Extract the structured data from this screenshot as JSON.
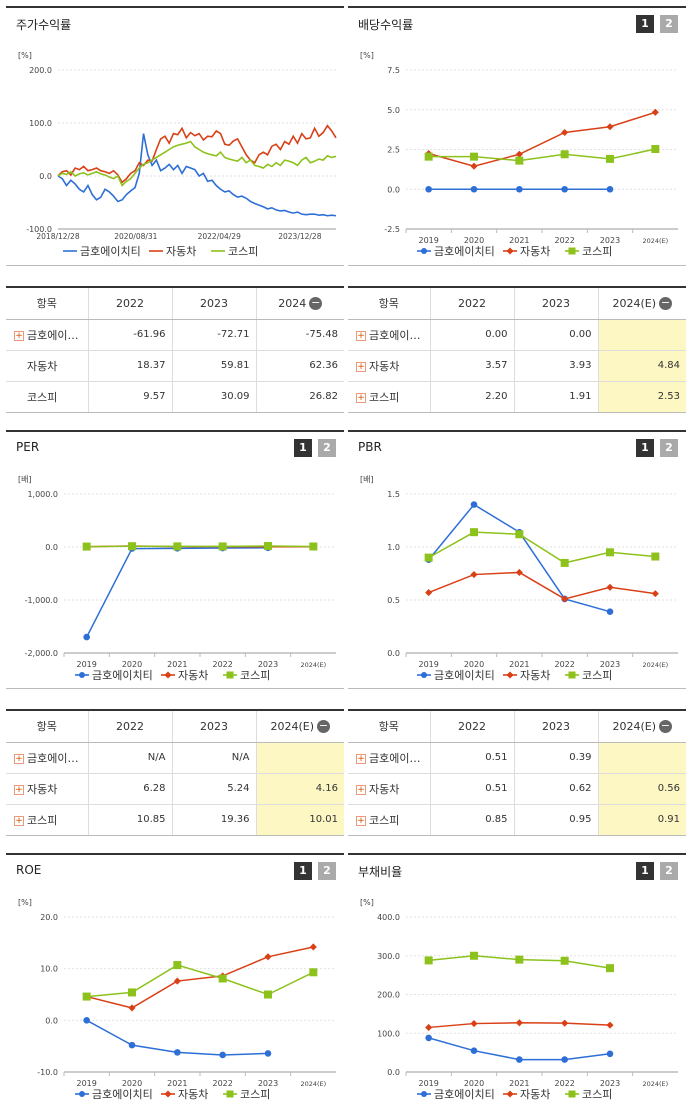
{
  "colors": {
    "blue": "#2d6fd6",
    "red": "#d94016",
    "green": "#8cc21b"
  },
  "legend": [
    "금호에이치티",
    "자동차",
    "코스피"
  ],
  "tab_labels": [
    "1",
    "2"
  ],
  "panels": {
    "returns": {
      "title": "주가수익률",
      "unit": "[%]"
    },
    "dividend": {
      "title": "배당수익률",
      "unit": "[%]"
    },
    "per": {
      "title": "PER",
      "unit": "[배]"
    },
    "pbr": {
      "title": "PBR",
      "unit": "[배]"
    },
    "roe": {
      "title": "ROE",
      "unit": "[%]"
    },
    "debt": {
      "title": "부채비율",
      "unit": "[%]"
    }
  },
  "tables": {
    "returns": {
      "header": [
        "항목",
        "2022",
        "2023",
        "2024"
      ],
      "rows": [
        [
          "금호에이…",
          "-61.96",
          "-72.71",
          "-75.48"
        ],
        [
          "자동차",
          "18.37",
          "59.81",
          "62.36"
        ],
        [
          "코스피",
          "9.57",
          "30.09",
          "26.82"
        ]
      ],
      "plus": [
        true,
        false,
        false
      ],
      "hl": false
    },
    "dividend": {
      "header": [
        "항목",
        "2022",
        "2023",
        "2024(E)"
      ],
      "rows": [
        [
          "금호에이…",
          "0.00",
          "0.00",
          ""
        ],
        [
          "자동차",
          "3.57",
          "3.93",
          "4.84"
        ],
        [
          "코스피",
          "2.20",
          "1.91",
          "2.53"
        ]
      ],
      "plus": [
        true,
        true,
        true
      ],
      "hl": true
    },
    "per": {
      "header": [
        "항목",
        "2022",
        "2023",
        "2024(E)"
      ],
      "rows": [
        [
          "금호에이…",
          "N/A",
          "N/A",
          ""
        ],
        [
          "자동차",
          "6.28",
          "5.24",
          "4.16"
        ],
        [
          "코스피",
          "10.85",
          "19.36",
          "10.01"
        ]
      ],
      "plus": [
        true,
        true,
        true
      ],
      "hl": true
    },
    "pbr": {
      "header": [
        "항목",
        "2022",
        "2023",
        "2024(E)"
      ],
      "rows": [
        [
          "금호에이…",
          "0.51",
          "0.39",
          ""
        ],
        [
          "자동차",
          "0.51",
          "0.62",
          "0.56"
        ],
        [
          "코스피",
          "0.85",
          "0.95",
          "0.91"
        ]
      ],
      "plus": [
        true,
        true,
        true
      ],
      "hl": true
    }
  },
  "chart_data": [
    {
      "id": "returns",
      "type": "line",
      "title": "주가수익률",
      "ylabel": "[%]",
      "ylim": [
        -100,
        200
      ],
      "yticks": [
        "200.0",
        "100.0",
        "0.0",
        "-100.0"
      ],
      "xticks": [
        "2018/12/28",
        "2020/08/31",
        "2022/04/29",
        "2023/12/28"
      ],
      "series": [
        {
          "name": "금호에이치티",
          "color": "blue",
          "values": [
            0,
            -5,
            -18,
            -8,
            -15,
            -25,
            -30,
            -18,
            -35,
            -45,
            -40,
            -25,
            -30,
            -38,
            -48,
            -45,
            -35,
            -28,
            -22,
            5,
            80,
            40,
            20,
            30,
            10,
            15,
            22,
            12,
            20,
            5,
            18,
            15,
            12,
            0,
            5,
            -10,
            -8,
            -18,
            -25,
            -30,
            -28,
            -35,
            -40,
            -38,
            -42,
            -48,
            -52,
            -55,
            -58,
            -62,
            -60,
            -64,
            -66,
            -65,
            -68,
            -70,
            -68,
            -72,
            -73,
            -72,
            -72,
            -74,
            -73,
            -75,
            -74,
            -75
          ]
        },
        {
          "name": "자동차",
          "color": "red",
          "values": [
            0,
            8,
            10,
            2,
            15,
            12,
            18,
            10,
            12,
            15,
            10,
            8,
            5,
            10,
            2,
            -12,
            -5,
            5,
            10,
            25,
            20,
            30,
            28,
            50,
            70,
            75,
            62,
            80,
            78,
            90,
            72,
            82,
            76,
            80,
            68,
            75,
            74,
            85,
            80,
            60,
            58,
            66,
            70,
            55,
            40,
            30,
            25,
            40,
            45,
            40,
            56,
            60,
            50,
            65,
            60,
            75,
            62,
            80,
            70,
            72,
            90,
            75,
            82,
            95,
            85,
            72
          ]
        },
        {
          "name": "코스피",
          "color": "green",
          "values": [
            0,
            5,
            3,
            8,
            0,
            4,
            6,
            2,
            5,
            8,
            4,
            2,
            -2,
            -5,
            0,
            -18,
            -10,
            -5,
            5,
            15,
            22,
            25,
            30,
            35,
            40,
            45,
            50,
            55,
            58,
            60,
            62,
            65,
            55,
            50,
            45,
            42,
            40,
            38,
            45,
            35,
            32,
            30,
            28,
            35,
            25,
            30,
            20,
            18,
            15,
            22,
            18,
            25,
            20,
            30,
            28,
            25,
            20,
            30,
            35,
            25,
            28,
            32,
            30,
            38,
            35,
            37
          ]
        }
      ]
    },
    {
      "id": "dividend",
      "type": "line",
      "title": "배당수익률",
      "ylabel": "[%]",
      "ylim": [
        -2.5,
        7.5
      ],
      "yticks": [
        "7.5",
        "5.0",
        "2.5",
        "0.0",
        "-2.5"
      ],
      "x": [
        "2019",
        "2020",
        "2021",
        "2022",
        "2023",
        "2024(E)"
      ],
      "series": [
        {
          "name": "금호에이치티",
          "color": "blue",
          "values": [
            0,
            0,
            0,
            0,
            0,
            null
          ]
        },
        {
          "name": "자동차",
          "color": "red",
          "values": [
            2.25,
            1.45,
            2.2,
            3.57,
            3.93,
            4.84
          ]
        },
        {
          "name": "코스피",
          "color": "green",
          "values": [
            2.05,
            2.05,
            1.8,
            2.2,
            1.91,
            2.53
          ]
        }
      ]
    },
    {
      "id": "per",
      "type": "line",
      "title": "PER",
      "ylabel": "[배]",
      "ylim": [
        -2000,
        1000
      ],
      "yticks": [
        "1,000.0",
        "0.0",
        "-1,000.0",
        "-2,000.0"
      ],
      "x": [
        "2019",
        "2020",
        "2021",
        "2022",
        "2023",
        "2024(E)"
      ],
      "series": [
        {
          "name": "금호에이치티",
          "color": "blue",
          "values": [
            -1700,
            -30,
            -25,
            -20,
            -15,
            null
          ]
        },
        {
          "name": "자동차",
          "color": "red",
          "values": [
            5,
            20,
            8,
            6.28,
            5.24,
            4.16
          ]
        },
        {
          "name": "코스피",
          "color": "green",
          "values": [
            8,
            15,
            12,
            10.85,
            19.36,
            10.01
          ]
        }
      ]
    },
    {
      "id": "pbr",
      "type": "line",
      "title": "PBR",
      "ylabel": "[배]",
      "ylim": [
        0,
        1.5
      ],
      "yticks": [
        "1.5",
        "1.0",
        "0.5",
        "0.0"
      ],
      "x": [
        "2019",
        "2020",
        "2021",
        "2022",
        "2023",
        "2024(E)"
      ],
      "series": [
        {
          "name": "금호에이치티",
          "color": "blue",
          "values": [
            0.88,
            1.4,
            1.14,
            0.51,
            0.39,
            null
          ]
        },
        {
          "name": "자동차",
          "color": "red",
          "values": [
            0.57,
            0.74,
            0.76,
            0.51,
            0.62,
            0.56
          ]
        },
        {
          "name": "코스피",
          "color": "green",
          "values": [
            0.9,
            1.14,
            1.12,
            0.85,
            0.95,
            0.91
          ]
        }
      ]
    },
    {
      "id": "roe",
      "type": "line",
      "title": "ROE",
      "ylabel": "[%]",
      "ylim": [
        -10,
        20
      ],
      "yticks": [
        "20.0",
        "10.0",
        "0.0",
        "-10.0"
      ],
      "x": [
        "2019",
        "2020",
        "2021",
        "2022",
        "2023",
        "2024(E)"
      ],
      "series": [
        {
          "name": "금호에이치티",
          "color": "blue",
          "values": [
            0,
            -4.8,
            -6.2,
            -6.7,
            -6.4,
            null
          ]
        },
        {
          "name": "자동차",
          "color": "red",
          "values": [
            4.6,
            2.4,
            7.6,
            8.6,
            12.3,
            14.2
          ]
        },
        {
          "name": "코스피",
          "color": "green",
          "values": [
            4.6,
            5.4,
            10.7,
            8.1,
            5,
            9.3
          ]
        }
      ]
    },
    {
      "id": "debt",
      "type": "line",
      "title": "부채비율",
      "ylabel": "[%]",
      "ylim": [
        0,
        400
      ],
      "yticks": [
        "400.0",
        "300.0",
        "200.0",
        "100.0",
        "0.0"
      ],
      "x": [
        "2019",
        "2020",
        "2021",
        "2022",
        "2023",
        "2024(E)"
      ],
      "series": [
        {
          "name": "금호에이치티",
          "color": "blue",
          "values": [
            88,
            55,
            32,
            32,
            47,
            null
          ]
        },
        {
          "name": "자동차",
          "color": "red",
          "values": [
            115,
            125,
            127,
            126,
            121,
            null
          ]
        },
        {
          "name": "코스피",
          "color": "green",
          "values": [
            288,
            300,
            290,
            287,
            268,
            null
          ]
        }
      ]
    }
  ]
}
